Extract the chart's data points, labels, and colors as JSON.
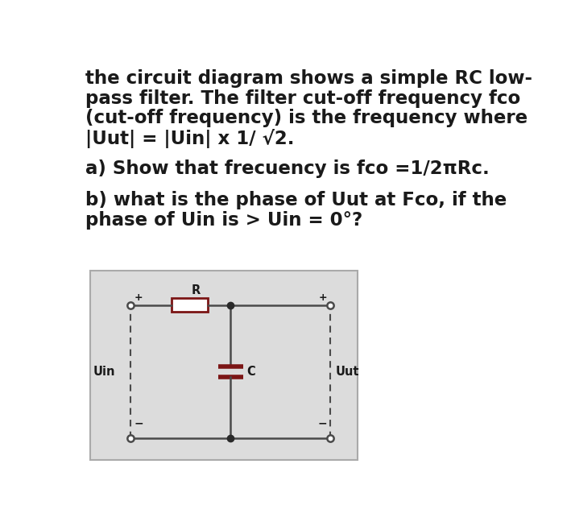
{
  "bg_color": "#ffffff",
  "text_color": "#1a1a1a",
  "text_lines": [
    "the circuit diagram shows a simple RC low-",
    "pass filter. The filter cut-off frequency fco",
    "(cut-off frequency) is the frequency where",
    "|Uut| = |Uin| x 1/ √2."
  ],
  "line_a": "a) Show that frecuency is fco =1/2πRc.",
  "line_b1": "b) what is the phase of Uut at Fco, if the",
  "line_b2": "phase of Uin is > Uin = 0°?",
  "circuit_bg": "#dcdcdc",
  "circuit_border": "#aaaaaa",
  "wire_color": "#4a4a4a",
  "resistor_color": "#7B1515",
  "capacitor_color": "#7B1515",
  "dot_color": "#2a2a2a",
  "terminal_color": "#4a4a4a",
  "dashed_color": "#4a4a4a",
  "label_uin": "Uin",
  "label_uut": "Uut",
  "label_r": "R",
  "label_c": "C",
  "font_size_main": 16.5,
  "font_size_circuit": 10.5,
  "font_weight": "bold"
}
